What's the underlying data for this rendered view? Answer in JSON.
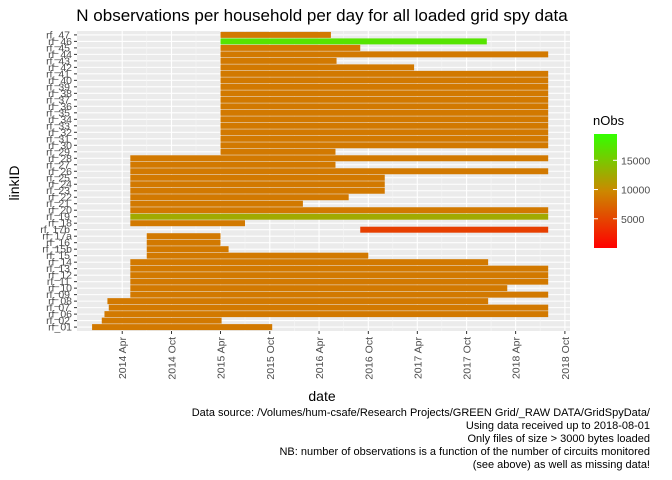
{
  "chart_data": {
    "type": "heatmap",
    "title": "N observations per household per day for all loaded grid spy data",
    "xlabel": "date",
    "ylabel": "linkID",
    "xlim": [
      "2013-10-15",
      "2018-10-20"
    ],
    "x_ticks": [
      "2014-04-01",
      "2014-10-01",
      "2015-04-01",
      "2015-10-01",
      "2016-04-01",
      "2016-10-01",
      "2017-04-01",
      "2017-10-01",
      "2018-04-01",
      "2018-10-01"
    ],
    "x_tick_labels": [
      "2014 Apr",
      "2014 Oct",
      "2015 Apr",
      "2015 Oct",
      "2016 Apr",
      "2016 Oct",
      "2017 Apr",
      "2017 Oct",
      "2018 Apr",
      "2018 Oct"
    ],
    "y_categories": [
      "rf_01",
      "rf_02",
      "rf_06",
      "rf_07",
      "rf_08",
      "rf_09",
      "rf_10",
      "rf_11",
      "rf_12",
      "rf_13",
      "rf_14",
      "rf_15",
      "rf_15b",
      "rf_16",
      "rf_17a",
      "rf_17b",
      "rf_18",
      "rf_19",
      "rf_20",
      "rf_21",
      "rf_22",
      "rf_23",
      "rf_24",
      "rf_25",
      "rf_26",
      "rf_27",
      "rf_28",
      "rf_29",
      "rf_30",
      "rf_31",
      "rf_32",
      "rf_33",
      "rf_34",
      "rf_35",
      "rf_36",
      "rf_37",
      "rf_38",
      "rf_39",
      "rf_40",
      "rf_41",
      "rf_42",
      "rf_43",
      "rf_44",
      "rf_45",
      "rf_46",
      "rf_47"
    ],
    "y_tick_labels": [
      "rf_01",
      "rf_06",
      "rf_08",
      "rf_10",
      "rf_12",
      "rf_14",
      "rf_15b",
      "rf_17a",
      "rf_18",
      "rf_20",
      "rf_22",
      "rf_24",
      "rf_26",
      "rf_28",
      "rf_30",
      "rf_32",
      "rf_34",
      "rf_36",
      "rf_38",
      "rf_40",
      "rf_42",
      "rf_44",
      "rf_46"
    ],
    "y_tick_labels_odd": [
      "rf_02",
      "rf_07",
      "rf_09",
      "rf_11",
      "rf_13",
      "rf_15",
      "rf_16",
      "rf_17b",
      "rf_19",
      "rf_21",
      "rf_23",
      "rf_25",
      "rf_27",
      "rf_29",
      "rf_31",
      "rf_33",
      "rf_35",
      "rf_37",
      "rf_39",
      "rf_41",
      "rf_43",
      "rf_45",
      "rf_47"
    ],
    "grid": true,
    "legend": {
      "title": "nObs",
      "position": "right",
      "low": 0,
      "high": 19500,
      "ticks": [
        5000,
        10000,
        15000
      ],
      "colors": [
        "#ff0000",
        "#cc8800",
        "#33ff00"
      ]
    },
    "rows": [
      {
        "id": "rf_01",
        "start": "2013-12-10",
        "end": "2015-10-10",
        "nobs": 8640
      },
      {
        "id": "rf_02",
        "start": "2014-01-15",
        "end": "2015-04-05",
        "nobs": 8640
      },
      {
        "id": "rf_06",
        "start": "2014-01-25",
        "end": "2018-07-31",
        "nobs": 8640
      },
      {
        "id": "rf_07",
        "start": "2014-02-10",
        "end": "2018-07-31",
        "nobs": 8640
      },
      {
        "id": "rf_08",
        "start": "2014-02-05",
        "end": "2017-12-20",
        "nobs": 8640
      },
      {
        "id": "rf_09",
        "start": "2014-05-01",
        "end": "2018-07-31",
        "nobs": 8640
      },
      {
        "id": "rf_10",
        "start": "2014-05-01",
        "end": "2018-03-01",
        "nobs": 8640
      },
      {
        "id": "rf_11",
        "start": "2014-05-01",
        "end": "2018-07-31",
        "nobs": 8640
      },
      {
        "id": "rf_12",
        "start": "2014-05-01",
        "end": "2018-07-31",
        "nobs": 8640
      },
      {
        "id": "rf_13",
        "start": "2014-05-01",
        "end": "2018-07-31",
        "nobs": 8640
      },
      {
        "id": "rf_14",
        "start": "2014-05-01",
        "end": "2017-12-20",
        "nobs": 8640
      },
      {
        "id": "rf_15",
        "start": "2014-07-01",
        "end": "2016-10-01",
        "nobs": 8640
      },
      {
        "id": "rf_15b",
        "start": "2014-07-01",
        "end": "2015-05-01",
        "nobs": 8640
      },
      {
        "id": "rf_16",
        "start": "2014-07-01",
        "end": "2015-04-01",
        "nobs": 8640
      },
      {
        "id": "rf_17a",
        "start": "2014-07-01",
        "end": "2015-04-01",
        "nobs": 8640
      },
      {
        "id": "rf_17b",
        "start": "2016-09-01",
        "end": "2018-07-31",
        "nobs": 4500
      },
      {
        "id": "rf_18",
        "start": "2014-05-01",
        "end": "2015-07-01",
        "nobs": 8640
      },
      {
        "id": "rf_19",
        "start": "2014-05-01",
        "end": "2018-07-31",
        "nobs": 12500
      },
      {
        "id": "rf_20",
        "start": "2014-05-01",
        "end": "2018-07-31",
        "nobs": 8640
      },
      {
        "id": "rf_21",
        "start": "2014-05-01",
        "end": "2016-02-01",
        "nobs": 8640
      },
      {
        "id": "rf_22",
        "start": "2014-05-01",
        "end": "2016-07-20",
        "nobs": 8640
      },
      {
        "id": "rf_23",
        "start": "2014-05-01",
        "end": "2016-12-01",
        "nobs": 8640
      },
      {
        "id": "rf_24",
        "start": "2014-05-01",
        "end": "2016-12-01",
        "nobs": 8640
      },
      {
        "id": "rf_25",
        "start": "2014-05-01",
        "end": "2016-12-01",
        "nobs": 8640
      },
      {
        "id": "rf_26",
        "start": "2014-05-01",
        "end": "2018-07-31",
        "nobs": 8640
      },
      {
        "id": "rf_27",
        "start": "2014-05-01",
        "end": "2016-06-01",
        "nobs": 8640
      },
      {
        "id": "rf_28",
        "start": "2014-05-01",
        "end": "2018-07-31",
        "nobs": 8640
      },
      {
        "id": "rf_29",
        "start": "2015-04-01",
        "end": "2016-06-01",
        "nobs": 8640
      },
      {
        "id": "rf_30",
        "start": "2015-04-01",
        "end": "2018-07-31",
        "nobs": 8640
      },
      {
        "id": "rf_31",
        "start": "2015-04-01",
        "end": "2018-07-31",
        "nobs": 8640
      },
      {
        "id": "rf_32",
        "start": "2015-04-01",
        "end": "2018-07-31",
        "nobs": 8640
      },
      {
        "id": "rf_33",
        "start": "2015-04-01",
        "end": "2018-07-31",
        "nobs": 8640
      },
      {
        "id": "rf_34",
        "start": "2015-04-01",
        "end": "2018-07-31",
        "nobs": 8640
      },
      {
        "id": "rf_35",
        "start": "2015-04-01",
        "end": "2018-07-31",
        "nobs": 8640
      },
      {
        "id": "rf_36",
        "start": "2015-04-01",
        "end": "2018-07-31",
        "nobs": 8640
      },
      {
        "id": "rf_37",
        "start": "2015-04-01",
        "end": "2018-07-31",
        "nobs": 8640
      },
      {
        "id": "rf_38",
        "start": "2015-04-01",
        "end": "2018-07-31",
        "nobs": 8640
      },
      {
        "id": "rf_39",
        "start": "2015-04-01",
        "end": "2018-07-31",
        "nobs": 8640
      },
      {
        "id": "rf_40",
        "start": "2015-04-01",
        "end": "2018-07-31",
        "nobs": 8640
      },
      {
        "id": "rf_41",
        "start": "2015-04-01",
        "end": "2018-07-31",
        "nobs": 8640
      },
      {
        "id": "rf_42",
        "start": "2015-04-01",
        "end": "2017-03-20",
        "nobs": 8640
      },
      {
        "id": "rf_43",
        "start": "2015-04-01",
        "end": "2016-06-05",
        "nobs": 8640
      },
      {
        "id": "rf_44",
        "start": "2015-04-01",
        "end": "2018-07-31",
        "nobs": 8640
      },
      {
        "id": "rf_45",
        "start": "2015-04-01",
        "end": "2016-09-01",
        "nobs": 8640
      },
      {
        "id": "rf_46",
        "start": "2015-04-01",
        "end": "2017-12-15",
        "nobs": 17280
      },
      {
        "id": "rf_47",
        "start": "2015-04-01",
        "end": "2016-05-15",
        "nobs": 8640
      }
    ]
  },
  "caption": {
    "line1": "Data source: /Volumes/hum-csafe/Research Projects/GREEN Grid/_RAW DATA/GridSpyData/",
    "line2": "Using data received up to 2018-08-01",
    "line3": "Only files of size > 3000 bytes loaded",
    "line4": "NB: number of observations is a function of the number of circuits monitored",
    "line5": "(see above) as well as missing data!"
  }
}
